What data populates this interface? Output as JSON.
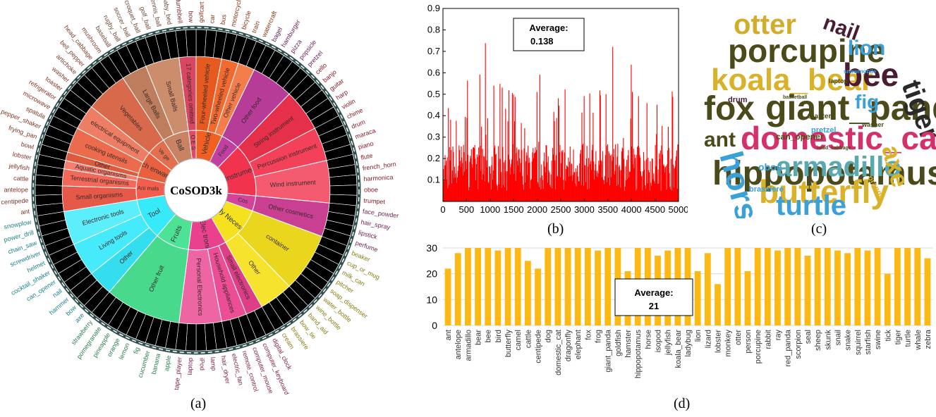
{
  "captions": {
    "a": "(a)",
    "b": "(b)",
    "c": "(c)",
    "d": "(d)"
  },
  "sunburst": {
    "center_label": "CoSOD3k",
    "groups": [
      {
        "name": "Vehicle",
        "color": "#f25f22",
        "subs": [
          {
            "name": "Four-wheeled vehicle",
            "items": [
              "golfcart",
              "car",
              "bus"
            ]
          },
          {
            "name": "Two-wheeled vehicle",
            "items": [
              "motorcycle",
              "bicycle"
            ]
          },
          {
            "name": "Other vehicle",
            "items": [
              "train",
              "watercraft"
            ]
          }
        ]
      },
      {
        "name": "Food",
        "color": "#c03fa0",
        "subs": [
          {
            "name": "Other food",
            "items": [
              "bagel",
              "hamburger",
              "pizza",
              "popsicle",
              "pretzel"
            ]
          }
        ]
      },
      {
        "name": "Instrument",
        "color": "#f2334e",
        "subs": [
          {
            "name": "String instrument",
            "items": [
              "cello",
              "banjo",
              "guitar",
              "harp",
              "violin"
            ]
          },
          {
            "name": "Percussion instrument",
            "items": [
              "chime",
              "drum",
              "maraca",
              "piano"
            ]
          },
          {
            "name": "Wind instrument",
            "items": [
              "flute",
              "french_horn",
              "harmonica",
              "oboe",
              "trumpet"
            ]
          }
        ]
      },
      {
        "name": "Cos",
        "color": "#d4439a",
        "subs": [
          {
            "name": "Other cosmetics",
            "items": [
              "face_powder",
              "hair_spray",
              "lipstick",
              "perfume"
            ]
          }
        ]
      },
      {
        "name": "Daily Necessities",
        "color": "#f5e11e",
        "subs": [
          {
            "name": "container",
            "items": [
              "beaker",
              "cup_or_mug",
              "milk_can",
              "pitcher",
              "soap_dispenser",
              "water_bottle",
              "wine_bottle"
            ]
          },
          {
            "name": "Other",
            "items": [
              "band_aid",
              "bow_tie",
              "brassiere",
              "cream"
            ]
          }
        ]
      },
      {
        "name": "Elec tronics",
        "color": "#e9418d",
        "subs": [
          {
            "name": "Small electronics",
            "items": [
              "digital_clock",
              "computer_keyboard"
            ]
          },
          {
            "name": "Household appliances",
            "items": [
              "computer_mouse",
              "remote_control",
              "electric_fan"
            ]
          },
          {
            "name": "Personal Electronics",
            "items": [
              "hair_dryer",
              "lamp",
              "iPod",
              "laptop",
              "tape_player"
            ]
          }
        ]
      },
      {
        "name": "Fruits",
        "color": "#4ce494",
        "subs": [
          {
            "name": "Other fruit",
            "items": [
              "apple",
              "banana",
              "cucumber",
              "fig",
              "lemon",
              "orange",
              "pineapple",
              "pomegranate",
              "strawberry"
            ]
          }
        ]
      },
      {
        "name": "Tool",
        "color": "#37eafa",
        "subs": [
          {
            "name": "Other",
            "items": [
              "axe",
              "bow",
              "hammer"
            ]
          },
          {
            "name": "Living tools",
            "items": [
              "nail",
              "can_opener",
              "cocktail_shaker",
              "helmet"
            ]
          },
          {
            "name": "Electronic tools",
            "items": [
              "screwdriver",
              "chain_saw",
              "power_drill",
              "snowplow"
            ]
          }
        ]
      },
      {
        "name": "Ani mals",
        "color": "#f25e4d",
        "subs": [
          {
            "name": "Small organisms",
            "items": [
              "ant",
              "centipede",
              "antelope"
            ]
          },
          {
            "name": "Terrestrial organisms",
            "items": [
              "cattle",
              "jellyfish"
            ]
          },
          {
            "name": "Aquatic organisms",
            "items": [
              "lobster"
            ]
          }
        ]
      },
      {
        "name": "Kitch enware",
        "color": "#e9603f",
        "subs": [
          {
            "name": "Other",
            "items": [
              "bowl"
            ]
          },
          {
            "name": "cooking utensils",
            "items": [
              "frying_pan",
              "salt_or_pepper_shaker",
              "spatula"
            ]
          },
          {
            "name": "electrical equipment",
            "items": [
              "microwave",
              "refrigerator",
              "toaster"
            ]
          }
        ]
      },
      {
        "name": "Ve ge",
        "color": "#e46f4f",
        "subs": [
          {
            "name": "Vegetables",
            "items": [
              "washer",
              "artichoke",
              "bell_pepper",
              "head_cabbage",
              "mushroom"
            ]
          }
        ]
      },
      {
        "name": "Ball",
        "color": "#c88462",
        "subs": [
          {
            "name": "Large Balls",
            "items": [
              "baseball",
              "rugby_ball",
              "soccer_ball"
            ]
          },
          {
            "name": "Small Balls",
            "items": [
              "croquet_ball",
              "golf_ball",
              "tennis_ball",
              "baby_bed"
            ]
          }
        ]
      },
      {
        "name": "O E S",
        "color": "#e34a67",
        "subs": [
          {
            "name": "17 categories omitted",
            "items": [
              "dumbbell",
              "bow"
            ]
          }
        ]
      }
    ]
  },
  "chart_b": {
    "type": "bar",
    "x_ticks": [
      "0",
      "500",
      "1000",
      "1500",
      "2000",
      "2500",
      "3000",
      "3500",
      "4000",
      "4500",
      "5000"
    ],
    "y_ticks": [
      "0.1",
      "0.2",
      "0.3",
      "0.4",
      "0.5",
      "0.6",
      "0.7",
      "0.8",
      "0.9"
    ],
    "xlim": [
      0,
      5000
    ],
    "ylim": [
      0,
      0.9
    ],
    "average_label": "Average:",
    "average_value": "0.138",
    "n_samples": 4915,
    "color": "#ff0000"
  },
  "wordcloud": {
    "words": [
      {
        "text": "otter",
        "color": "#d2ac2a"
      },
      {
        "text": "nail",
        "color": "#4a1c32"
      },
      {
        "text": "porcupine",
        "color": "#4a4a1a"
      },
      {
        "text": "lion",
        "color": "#3aa0d8"
      },
      {
        "text": "koala_bear",
        "color": "#d9b22a"
      },
      {
        "text": "bee",
        "color": "#4a1c32"
      },
      {
        "text": "fox",
        "color": "#4a4a1a"
      },
      {
        "text": "giant_panda",
        "color": "#4a4a1a"
      },
      {
        "text": "fig",
        "color": "#3aa0d8"
      },
      {
        "text": "tiger",
        "color": "#2a2a2a"
      },
      {
        "text": "ant",
        "color": "#4a4a1a"
      },
      {
        "text": "domestic_cat",
        "color": "#d6306a"
      },
      {
        "text": "hippopotamus",
        "color": "#4a4a1a"
      },
      {
        "text": "horse",
        "color": "#3aa0d8"
      },
      {
        "text": "armadillo",
        "color": "#5aa8b0"
      },
      {
        "text": "axe",
        "color": "#d9b22a"
      },
      {
        "text": "butterfly",
        "color": "#d9b22a"
      },
      {
        "text": "turtle",
        "color": "#3aa0d8"
      },
      {
        "text": "drum",
        "color": "#4a1c32"
      },
      {
        "text": "basketball",
        "color": "#4a4a1a"
      },
      {
        "text": "laptop",
        "color": "#4a4a1a"
      },
      {
        "text": "snowmobile",
        "color": "#3aa0d8"
      },
      {
        "text": "toaster",
        "color": "#4a4a1a"
      },
      {
        "text": "washer",
        "color": "#4a4a1a"
      },
      {
        "text": "pretzel",
        "color": "#3aa0d8"
      },
      {
        "text": "can_opener",
        "color": "#4a4a1a"
      },
      {
        "text": "oboe",
        "color": "#3aa0d8"
      },
      {
        "text": "head_cabbage",
        "color": "#4a4a1a"
      },
      {
        "text": "orange",
        "color": "#d9b22a"
      },
      {
        "text": "brassiere",
        "color": "#3aa0d8"
      }
    ]
  },
  "chart_d": {
    "type": "bar",
    "categories": [
      "ant",
      "antelope",
      "armadillo",
      "bear",
      "bee",
      "bird",
      "butterfly",
      "camel",
      "cattle",
      "centipede",
      "dog",
      "domestic_cat",
      "dragonfly",
      "elephant",
      "fox",
      "frog",
      "giant_panda",
      "goldfish",
      "hamster",
      "hippopotamus",
      "horse",
      "isopod",
      "jellyfish",
      "koala_bear",
      "ladybug",
      "lion",
      "lizard",
      "lobster",
      "monkey",
      "otter",
      "person",
      "porcupine",
      "rabbit",
      "ray",
      "red_panda",
      "scorpion",
      "seal",
      "sheep",
      "skunk",
      "snail",
      "snake",
      "squirrel",
      "starfish",
      "swine",
      "tick",
      "tiger",
      "turtle",
      "whale",
      "zebra"
    ],
    "values": [
      22,
      28,
      30,
      30,
      30,
      29,
      30,
      30,
      25,
      22,
      30,
      30,
      30,
      30,
      30,
      29,
      30,
      30,
      21,
      30,
      30,
      27,
      29,
      30,
      30,
      21,
      28,
      16,
      30,
      30,
      21,
      30,
      30,
      29,
      30,
      30,
      27,
      30,
      30,
      29,
      28,
      30,
      29,
      30,
      20,
      30,
      30,
      30,
      26
    ],
    "y_ticks": [
      "0",
      "10",
      "20",
      "30"
    ],
    "ylim": [
      0,
      30
    ],
    "average_label": "Average:",
    "average_value": "21",
    "color": "#fdb913"
  }
}
